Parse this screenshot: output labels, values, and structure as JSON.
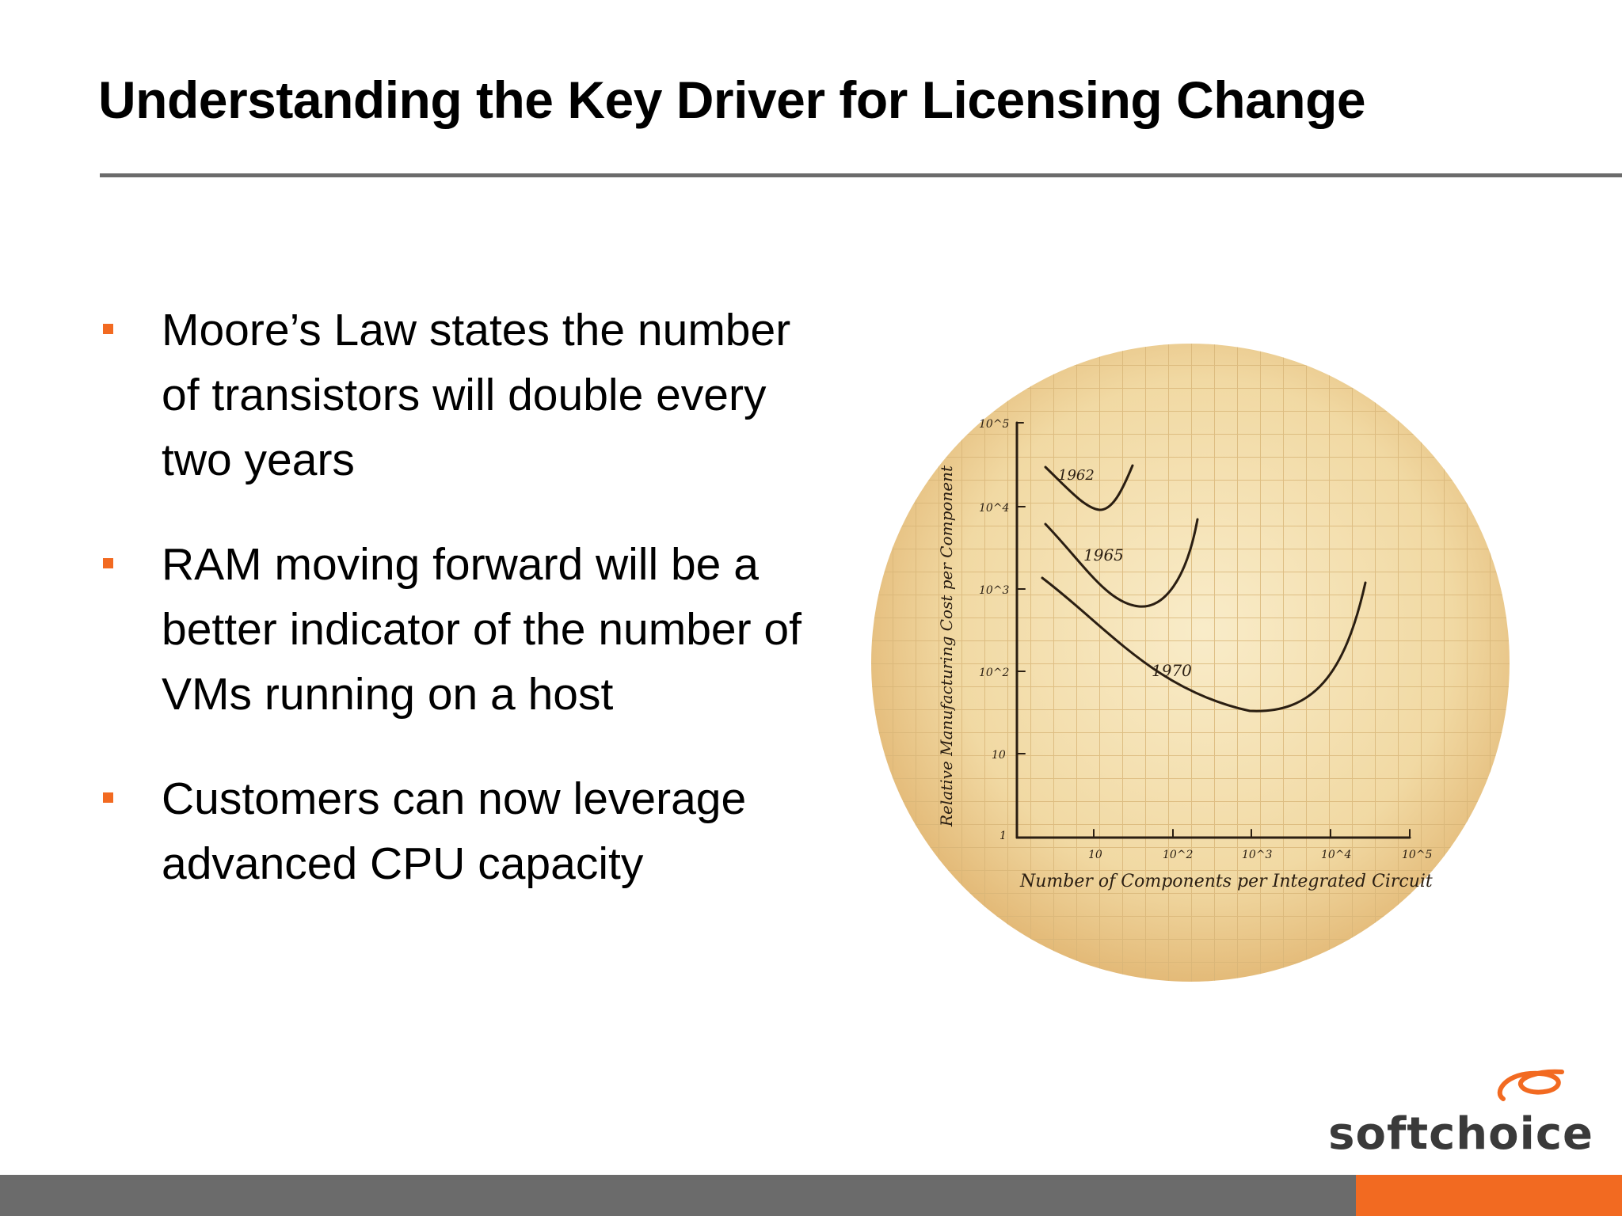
{
  "slide": {
    "title": "Understanding the Key Driver for Licensing Change",
    "bullets": [
      "Moore’s Law states the number of transistors will double every two years",
      "RAM moving forward will be a better indicator of the number of VMs running on a host",
      "Customers can now leverage advanced CPU capacity"
    ],
    "accent_color": "#f26a21",
    "rule_color": "#6b6b6b"
  },
  "figure": {
    "ylabel": "Relative Manufacturing Cost per Component",
    "xlabel": "Number of Components per Integrated Circuit",
    "y_ticks": [
      "10^5",
      "10^4",
      "10^3",
      "10^2",
      "10",
      "1"
    ],
    "x_ticks": [
      "10",
      "10^2",
      "10^3",
      "10^4",
      "10^5"
    ],
    "curves": [
      {
        "label": "1962"
      },
      {
        "label": "1965"
      },
      {
        "label": "1970"
      }
    ]
  },
  "brand": {
    "name": "softchoice"
  },
  "footer": {}
}
